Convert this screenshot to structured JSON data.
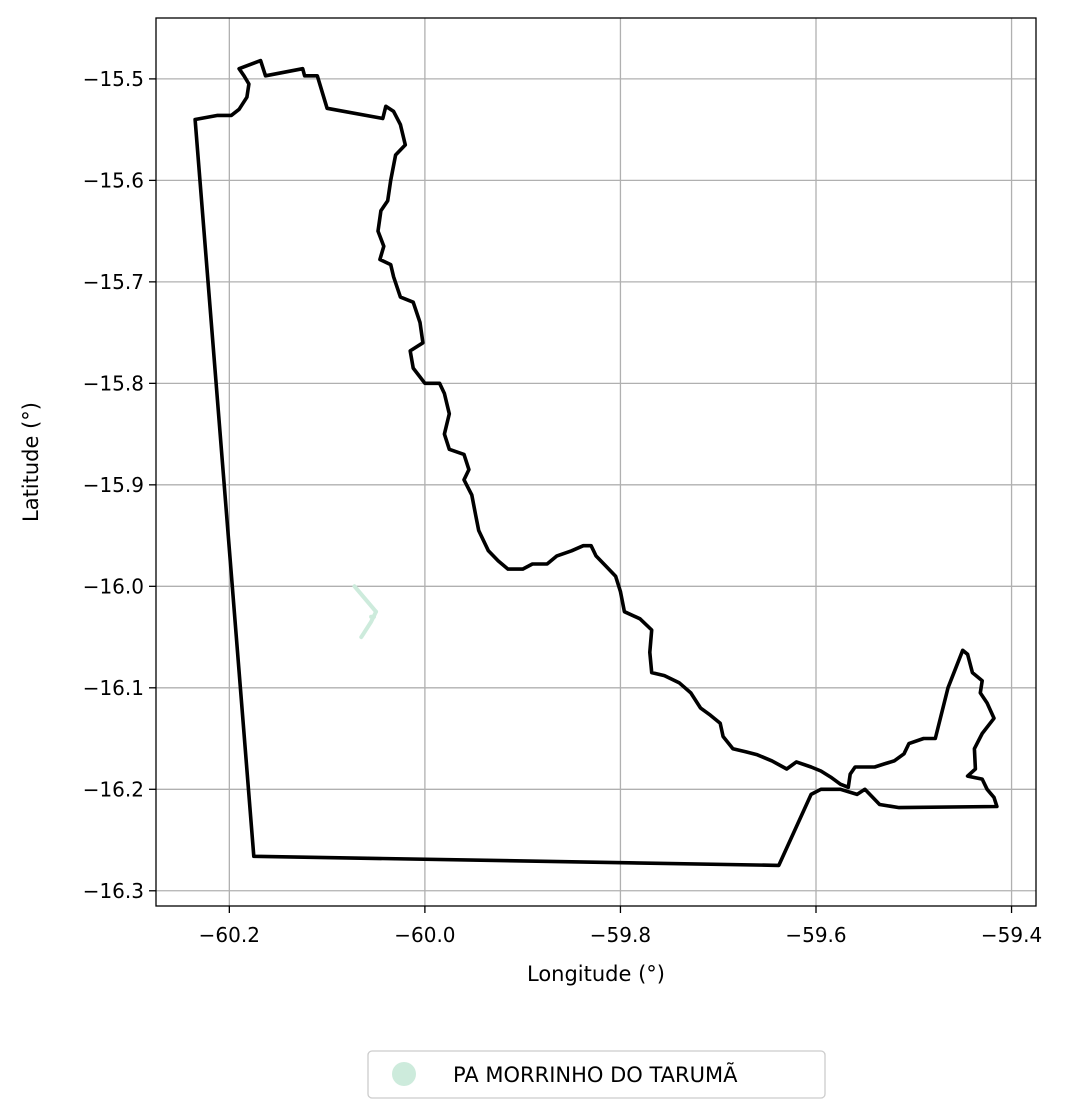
{
  "chart_data": {
    "type": "map",
    "xlabel": "Longitude (°)",
    "ylabel": "Latitude (°)",
    "xlim": [
      -60.275,
      -59.375
    ],
    "ylim": [
      -16.315,
      -15.44
    ],
    "grid": true,
    "x_ticks": [
      {
        "value": -60.2,
        "label": "−60.2"
      },
      {
        "value": -60.0,
        "label": "−60.0"
      },
      {
        "value": -59.8,
        "label": "−59.8"
      },
      {
        "value": -59.6,
        "label": "−59.6"
      },
      {
        "value": -59.4,
        "label": "−59.4"
      }
    ],
    "y_ticks": [
      {
        "value": -15.5,
        "label": "−15.5"
      },
      {
        "value": -15.6,
        "label": "−15.6"
      },
      {
        "value": -15.7,
        "label": "−15.7"
      },
      {
        "value": -15.8,
        "label": "−15.8"
      },
      {
        "value": -15.9,
        "label": "−15.9"
      },
      {
        "value": -16.0,
        "label": "−16.0"
      },
      {
        "value": -16.1,
        "label": "−16.1"
      },
      {
        "value": -16.2,
        "label": "−16.2"
      },
      {
        "value": -16.3,
        "label": "−16.3"
      }
    ],
    "boundary": {
      "color": "#000000",
      "points": [
        [
          -60.235,
          -15.54
        ],
        [
          -60.212,
          -15.536
        ],
        [
          -60.198,
          -15.536
        ],
        [
          -60.19,
          -15.53
        ],
        [
          -60.182,
          -15.518
        ],
        [
          -60.18,
          -15.505
        ],
        [
          -60.185,
          -15.497
        ],
        [
          -60.19,
          -15.49
        ],
        [
          -60.168,
          -15.482
        ],
        [
          -60.163,
          -15.497
        ],
        [
          -60.125,
          -15.49
        ],
        [
          -60.123,
          -15.497
        ],
        [
          -60.11,
          -15.497
        ],
        [
          -60.1,
          -15.529
        ],
        [
          -60.043,
          -15.539
        ],
        [
          -60.04,
          -15.527
        ],
        [
          -60.032,
          -15.532
        ],
        [
          -60.025,
          -15.545
        ],
        [
          -60.02,
          -15.565
        ],
        [
          -60.03,
          -15.575
        ],
        [
          -60.035,
          -15.6
        ],
        [
          -60.038,
          -15.62
        ],
        [
          -60.045,
          -15.63
        ],
        [
          -60.048,
          -15.65
        ],
        [
          -60.042,
          -15.665
        ],
        [
          -60.046,
          -15.678
        ],
        [
          -60.035,
          -15.683
        ],
        [
          -60.032,
          -15.695
        ],
        [
          -60.025,
          -15.715
        ],
        [
          -60.012,
          -15.72
        ],
        [
          -60.005,
          -15.74
        ],
        [
          -60.002,
          -15.76
        ],
        [
          -60.015,
          -15.768
        ],
        [
          -60.012,
          -15.785
        ],
        [
          -60.0,
          -15.8
        ],
        [
          -59.985,
          -15.8
        ],
        [
          -59.98,
          -15.81
        ],
        [
          -59.975,
          -15.83
        ],
        [
          -59.98,
          -15.85
        ],
        [
          -59.975,
          -15.865
        ],
        [
          -59.96,
          -15.87
        ],
        [
          -59.955,
          -15.885
        ],
        [
          -59.96,
          -15.895
        ],
        [
          -59.952,
          -15.91
        ],
        [
          -59.948,
          -15.93
        ],
        [
          -59.945,
          -15.945
        ],
        [
          -59.935,
          -15.965
        ],
        [
          -59.925,
          -15.975
        ],
        [
          -59.915,
          -15.983
        ],
        [
          -59.9,
          -15.983
        ],
        [
          -59.89,
          -15.978
        ],
        [
          -59.875,
          -15.978
        ],
        [
          -59.865,
          -15.97
        ],
        [
          -59.85,
          -15.965
        ],
        [
          -59.838,
          -15.96
        ],
        [
          -59.83,
          -15.96
        ],
        [
          -59.825,
          -15.97
        ],
        [
          -59.815,
          -15.98
        ],
        [
          -59.805,
          -15.99
        ],
        [
          -59.8,
          -16.005
        ],
        [
          -59.796,
          -16.025
        ],
        [
          -59.78,
          -16.032
        ],
        [
          -59.768,
          -16.043
        ],
        [
          -59.77,
          -16.065
        ],
        [
          -59.768,
          -16.085
        ],
        [
          -59.755,
          -16.088
        ],
        [
          -59.74,
          -16.095
        ],
        [
          -59.728,
          -16.105
        ],
        [
          -59.718,
          -16.12
        ],
        [
          -59.708,
          -16.127
        ],
        [
          -59.698,
          -16.135
        ],
        [
          -59.695,
          -16.148
        ],
        [
          -59.685,
          -16.16
        ],
        [
          -59.672,
          -16.163
        ],
        [
          -59.66,
          -16.166
        ],
        [
          -59.645,
          -16.172
        ],
        [
          -59.63,
          -16.18
        ],
        [
          -59.62,
          -16.173
        ],
        [
          -59.605,
          -16.178
        ],
        [
          -59.595,
          -16.182
        ],
        [
          -59.585,
          -16.188
        ],
        [
          -59.575,
          -16.195
        ],
        [
          -59.567,
          -16.198
        ],
        [
          -59.565,
          -16.185
        ],
        [
          -59.56,
          -16.178
        ],
        [
          -59.54,
          -16.178
        ],
        [
          -59.53,
          -16.175
        ],
        [
          -59.52,
          -16.172
        ],
        [
          -59.51,
          -16.165
        ],
        [
          -59.505,
          -16.155
        ],
        [
          -59.49,
          -16.15
        ],
        [
          -59.478,
          -16.15
        ],
        [
          -59.465,
          -16.1
        ],
        [
          -59.45,
          -16.063
        ],
        [
          -59.445,
          -16.067
        ],
        [
          -59.44,
          -16.085
        ],
        [
          -59.43,
          -16.093
        ],
        [
          -59.432,
          -16.105
        ],
        [
          -59.425,
          -16.115
        ],
        [
          -59.418,
          -16.13
        ],
        [
          -59.43,
          -16.145
        ],
        [
          -59.438,
          -16.16
        ],
        [
          -59.437,
          -16.18
        ],
        [
          -59.445,
          -16.187
        ],
        [
          -59.43,
          -16.19
        ],
        [
          -59.425,
          -16.2
        ],
        [
          -59.418,
          -16.208
        ],
        [
          -59.415,
          -16.217
        ],
        [
          -59.515,
          -16.218
        ],
        [
          -59.535,
          -16.215
        ],
        [
          -59.55,
          -16.2
        ],
        [
          -59.558,
          -16.205
        ],
        [
          -59.575,
          -16.2
        ],
        [
          -59.595,
          -16.2
        ],
        [
          -59.605,
          -16.205
        ],
        [
          -59.638,
          -16.275
        ],
        [
          -60.175,
          -16.266
        ],
        [
          -60.235,
          -15.54
        ]
      ]
    },
    "series": [
      {
        "name": "PA MORRINHO DO TARUMÃ",
        "color": "#cdebdc",
        "lines": [
          [
            [
              -60.072,
              -16.0
            ],
            [
              -60.05,
              -16.025
            ]
          ],
          [
            [
              -60.05,
              -16.025
            ],
            [
              -60.055,
              -16.035
            ],
            [
              -60.065,
              -16.05
            ]
          ],
          [
            [
              -60.055,
              -16.03
            ],
            [
              -60.052,
              -16.03
            ]
          ]
        ]
      }
    ],
    "legend": {
      "position": "bottom-center-outside"
    }
  }
}
